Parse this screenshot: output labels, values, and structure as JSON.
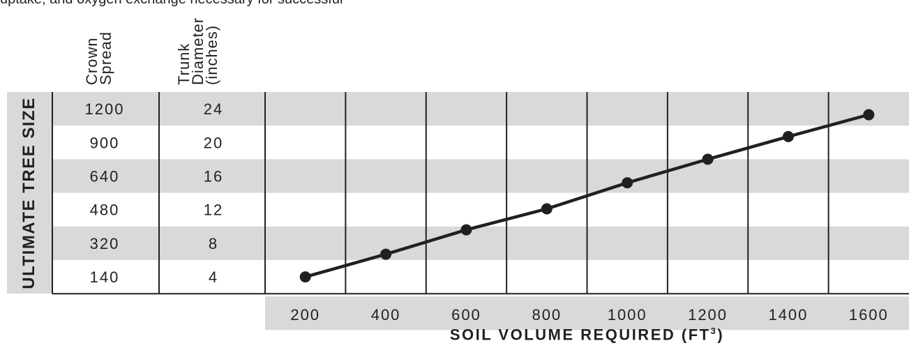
{
  "intro_text": "uptake, and oxygen exchange necessary for successful",
  "table": {
    "crown_spread_header": [
      "Crown",
      "Spread"
    ],
    "trunk_diameter_header": [
      "Trunk",
      "Diameter",
      "(inches)"
    ],
    "side_label": "ULTIMATE TREE SIZE"
  },
  "colors": {
    "band": "#d8d9da",
    "line": "#231f20"
  },
  "chart_data": {
    "type": "line",
    "xlabel": "SOIL VOLUME REQUIRED (FT",
    "xlabel_superscript": "3",
    "xlabel_suffix": ")",
    "ylabel": "ULTIMATE TREE SIZE",
    "x_ticks": [
      "200",
      "400",
      "600",
      "800",
      "1000",
      "1200",
      "1400",
      "1600"
    ],
    "xlim": [
      100,
      1700
    ],
    "rows": [
      {
        "crown_spread": "1200",
        "trunk_diameter": "24"
      },
      {
        "crown_spread": "900",
        "trunk_diameter": "20"
      },
      {
        "crown_spread": "640",
        "trunk_diameter": "16"
      },
      {
        "crown_spread": "480",
        "trunk_diameter": "12"
      },
      {
        "crown_spread": "320",
        "trunk_diameter": "8"
      },
      {
        "crown_spread": "140",
        "trunk_diameter": "4"
      }
    ],
    "points": [
      {
        "x": 200,
        "trunk_diameter": 4
      },
      {
        "x": 400,
        "trunk_diameter": 6.7
      },
      {
        "x": 600,
        "trunk_diameter": 9.6
      },
      {
        "x": 800,
        "trunk_diameter": 12.1
      },
      {
        "x": 1000,
        "trunk_diameter": 15.2
      },
      {
        "x": 1200,
        "trunk_diameter": 18
      },
      {
        "x": 1400,
        "trunk_diameter": 20.7
      },
      {
        "x": 1600,
        "trunk_diameter": 23.3
      }
    ],
    "grid": true
  }
}
